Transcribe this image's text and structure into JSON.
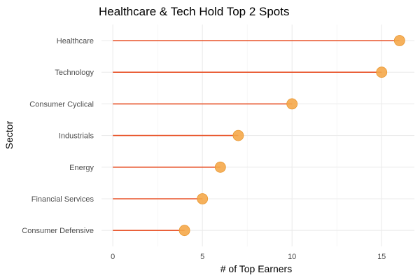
{
  "chart_data": {
    "type": "lollipop",
    "title": "Healthcare & Tech Hold Top 2 Spots",
    "xlabel": "# of Top Earners",
    "ylabel": "Sector",
    "categories": [
      "Healthcare",
      "Technology",
      "Consumer Cyclical",
      "Industrials",
      "Energy",
      "Financial Services",
      "Consumer Defensive"
    ],
    "values": [
      16,
      15,
      10,
      7,
      6,
      5,
      4
    ],
    "xlim": [
      0,
      16
    ],
    "x_ticks": [
      0,
      5,
      10,
      15
    ],
    "grid": true,
    "legend": "none",
    "colors": {
      "stem": "#e8542a",
      "point": "#f5a94a",
      "point_stroke": "#e8962f"
    }
  }
}
